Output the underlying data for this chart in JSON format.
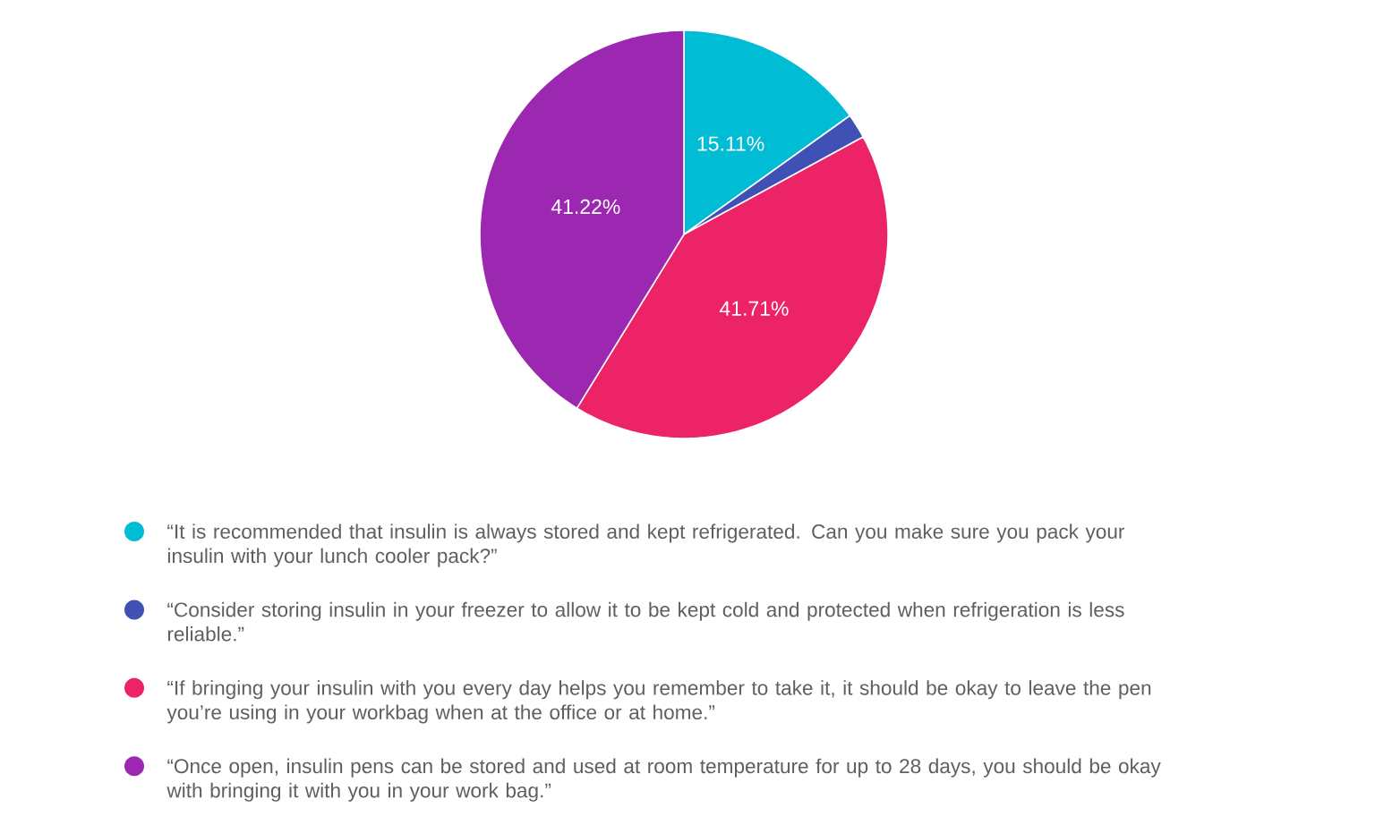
{
  "chart_data": {
    "type": "pie",
    "categories": [
      "“It is recommended that insulin is always stored and kept refrigerated. Can you make sure you pack your insulin with your lunch cooler pack?”",
      "“Consider storing insulin in your freezer to allow it to be kept cold and protected when refrigeration is less reliable.”",
      "“If bringing your insulin with you every day helps you remember to take it, it should be okay to leave the pen you’re using in your workbag when at the office or at home.”",
      "“Once open, insulin pens can be stored and used at room temperature for up to 28 days, you should be okay with bringing it with you in your work bag.”"
    ],
    "values": [
      15.11,
      1.96,
      41.71,
      41.22
    ],
    "colors": [
      "#00bcd4",
      "#3f51b5",
      "#ec2467",
      "#9c27b0"
    ],
    "value_labels": [
      "15.11%",
      null,
      "41.71%",
      "41.22%"
    ],
    "legend": "bottom"
  }
}
